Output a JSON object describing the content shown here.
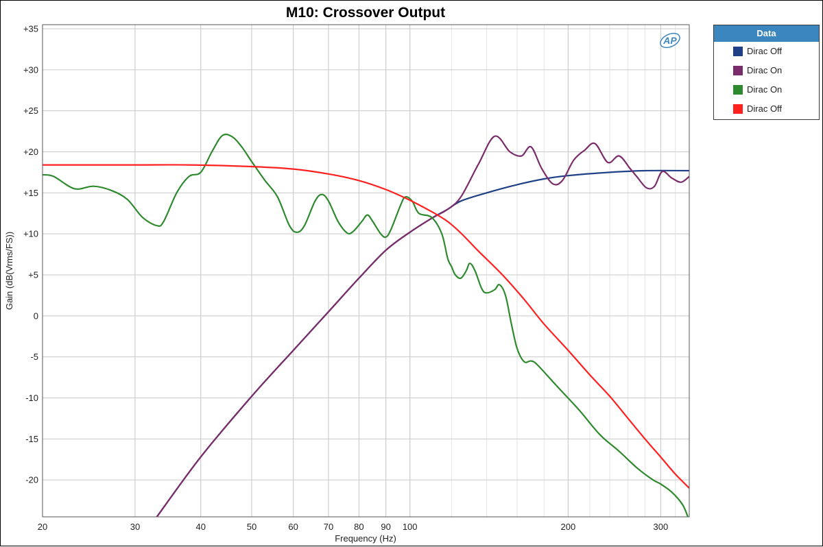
{
  "chart_data": {
    "type": "line",
    "title": "M10: Crossover Output",
    "xlabel": "Frequency (Hz)",
    "ylabel": "Gain (dB(Vrms/FS))",
    "x_scale": "log",
    "xlim": [
      20,
      340
    ],
    "ylim": [
      -24.5,
      35.5
    ],
    "x_ticks": [
      20,
      30,
      40,
      50,
      60,
      70,
      80,
      90,
      100,
      200,
      300
    ],
    "x_tick_labels": [
      "20",
      "30",
      "40",
      "50",
      "60",
      "70",
      "80",
      "90",
      "100",
      "200",
      "300"
    ],
    "y_ticks": [
      35,
      30,
      25,
      20,
      15,
      10,
      5,
      0,
      -5,
      -10,
      -15,
      -20
    ],
    "y_tick_labels": [
      "+35",
      "+30",
      "+25",
      "+20",
      "+15",
      "+10",
      "+5",
      "0",
      "-5",
      "-10",
      "-15",
      "-20"
    ],
    "grid": true,
    "legend_position": "right",
    "legend_title": "Data",
    "watermark": "AP",
    "series": [
      {
        "name": "Dirac Off",
        "color": "#1f3f86",
        "points": [
          [
            33,
            -24.5
          ],
          [
            40,
            -17.2
          ],
          [
            50,
            -9.8
          ],
          [
            60,
            -4.2
          ],
          [
            70,
            0.5
          ],
          [
            80,
            4.6
          ],
          [
            90,
            8.0
          ],
          [
            100,
            10.2
          ],
          [
            110,
            11.9
          ],
          [
            118,
            13.0
          ],
          [
            125,
            14.0
          ],
          [
            140,
            15.0
          ],
          [
            160,
            16.0
          ],
          [
            180,
            16.7
          ],
          [
            200,
            17.1
          ],
          [
            240,
            17.5
          ],
          [
            280,
            17.7
          ],
          [
            340,
            17.7
          ]
        ]
      },
      {
        "name": "Dirac On",
        "color": "#7b2c6b",
        "points": [
          [
            33,
            -24.5
          ],
          [
            40,
            -17.2
          ],
          [
            50,
            -9.8
          ],
          [
            60,
            -4.2
          ],
          [
            70,
            0.5
          ],
          [
            80,
            4.6
          ],
          [
            90,
            8.0
          ],
          [
            100,
            10.2
          ],
          [
            110,
            11.9
          ],
          [
            118,
            13.0
          ],
          [
            125,
            14.5
          ],
          [
            135,
            18.5
          ],
          [
            145,
            21.9
          ],
          [
            155,
            20.0
          ],
          [
            163,
            19.5
          ],
          [
            170,
            20.6
          ],
          [
            178,
            18.0
          ],
          [
            187,
            16.1
          ],
          [
            195,
            16.5
          ],
          [
            205,
            19.0
          ],
          [
            215,
            20.2
          ],
          [
            225,
            21.0
          ],
          [
            238,
            18.7
          ],
          [
            250,
            19.5
          ],
          [
            262,
            18.0
          ],
          [
            270,
            17.0
          ],
          [
            282,
            15.6
          ],
          [
            292,
            15.8
          ],
          [
            302,
            17.6
          ],
          [
            315,
            16.8
          ],
          [
            328,
            16.3
          ],
          [
            340,
            17.0
          ]
        ]
      },
      {
        "name": "Dirac On",
        "color": "#2f8a2f",
        "points": [
          [
            20,
            17.2
          ],
          [
            21,
            17.0
          ],
          [
            23,
            15.5
          ],
          [
            25,
            15.8
          ],
          [
            27,
            15.3
          ],
          [
            29,
            14.2
          ],
          [
            31,
            12.0
          ],
          [
            33,
            11.0
          ],
          [
            34,
            11.5
          ],
          [
            36,
            15.0
          ],
          [
            38,
            17.0
          ],
          [
            40,
            17.5
          ],
          [
            42,
            20.0
          ],
          [
            44,
            22.0
          ],
          [
            46,
            21.8
          ],
          [
            48,
            20.5
          ],
          [
            50,
            18.8
          ],
          [
            53,
            16.5
          ],
          [
            56,
            14.5
          ],
          [
            59,
            11.0
          ],
          [
            61,
            10.2
          ],
          [
            63,
            11.0
          ],
          [
            66,
            14.0
          ],
          [
            68,
            14.8
          ],
          [
            70,
            14.0
          ],
          [
            73,
            11.5
          ],
          [
            76,
            10.1
          ],
          [
            78,
            10.3
          ],
          [
            81,
            11.5
          ],
          [
            83,
            12.3
          ],
          [
            85,
            11.5
          ],
          [
            88,
            10.0
          ],
          [
            90,
            9.6
          ],
          [
            92,
            10.5
          ],
          [
            96,
            13.5
          ],
          [
            98,
            14.5
          ],
          [
            101,
            14.0
          ],
          [
            104,
            12.5
          ],
          [
            110,
            12.0
          ],
          [
            115,
            10.0
          ],
          [
            118,
            7.0
          ],
          [
            120,
            6.0
          ],
          [
            122,
            5.0
          ],
          [
            125,
            4.6
          ],
          [
            128,
            5.5
          ],
          [
            130,
            6.4
          ],
          [
            133,
            5.5
          ],
          [
            137,
            3.3
          ],
          [
            140,
            2.8
          ],
          [
            145,
            3.2
          ],
          [
            148,
            3.8
          ],
          [
            152,
            2.5
          ],
          [
            156,
            -1.0
          ],
          [
            160,
            -4.0
          ],
          [
            165,
            -5.6
          ],
          [
            170,
            -5.5
          ],
          [
            175,
            -6.0
          ],
          [
            190,
            -8.5
          ],
          [
            210,
            -11.5
          ],
          [
            230,
            -14.5
          ],
          [
            250,
            -16.5
          ],
          [
            270,
            -18.5
          ],
          [
            290,
            -20.0
          ],
          [
            300,
            -20.5
          ],
          [
            315,
            -21.5
          ],
          [
            330,
            -23.0
          ],
          [
            338,
            -24.5
          ]
        ]
      },
      {
        "name": "Dirac Off",
        "color": "#ff2020",
        "points": [
          [
            20,
            18.4
          ],
          [
            30,
            18.4
          ],
          [
            38,
            18.4
          ],
          [
            50,
            18.2
          ],
          [
            60,
            17.9
          ],
          [
            70,
            17.3
          ],
          [
            80,
            16.5
          ],
          [
            90,
            15.4
          ],
          [
            100,
            14.1
          ],
          [
            110,
            12.7
          ],
          [
            118,
            11.5
          ],
          [
            125,
            10.1
          ],
          [
            135,
            7.9
          ],
          [
            150,
            5.0
          ],
          [
            165,
            2.0
          ],
          [
            180,
            -1.0
          ],
          [
            200,
            -4.2
          ],
          [
            220,
            -7.2
          ],
          [
            240,
            -9.8
          ],
          [
            260,
            -12.5
          ],
          [
            280,
            -15.0
          ],
          [
            300,
            -17.2
          ],
          [
            320,
            -19.3
          ],
          [
            340,
            -21.0
          ]
        ]
      }
    ]
  }
}
